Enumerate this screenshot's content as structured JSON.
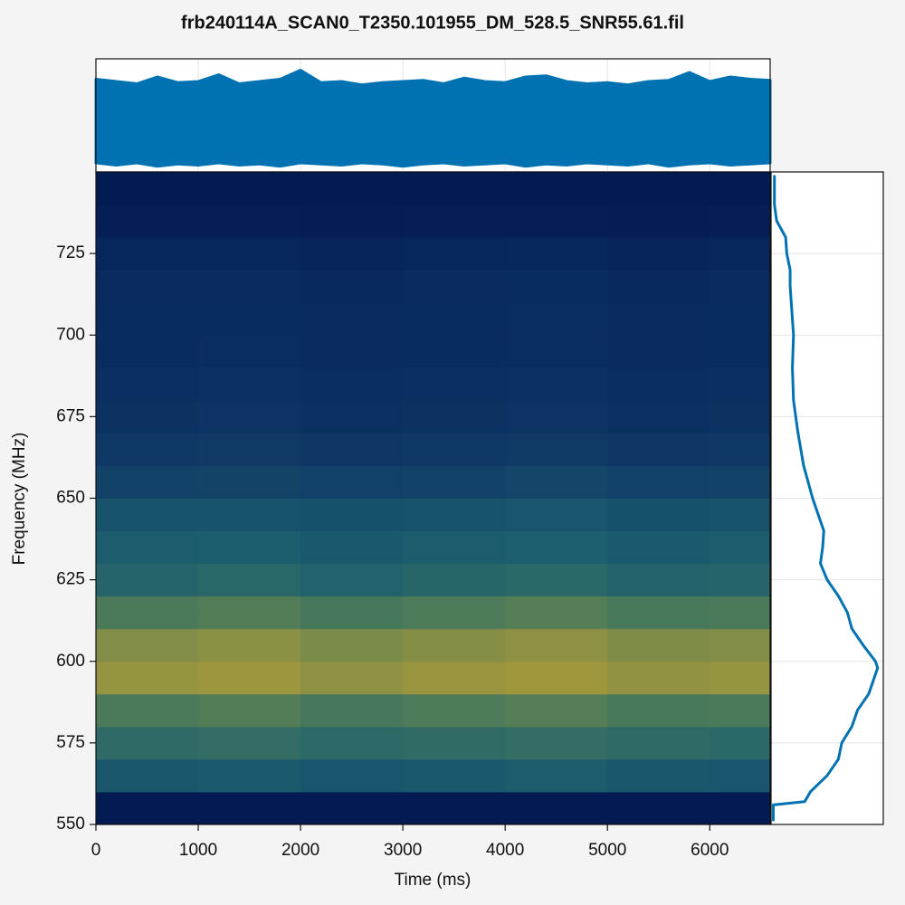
{
  "chart_data": [
    {
      "type": "heatmap",
      "title": "frb240114A_SCAN0_T2350.101955_DM_528.5_SNR55.61.fil",
      "x_label": "Time (ms)",
      "y_label": "Frequency (MHz)",
      "xlim": [
        0,
        6590
      ],
      "ylim": [
        550,
        750
      ],
      "xticks": [
        0,
        1000,
        2000,
        3000,
        4000,
        5000,
        6000
      ],
      "yticks": [
        550,
        575,
        600,
        625,
        650,
        675,
        700,
        725
      ],
      "x_bins": [
        0,
        1000,
        2000,
        3000,
        4000,
        5000,
        6000,
        6590
      ],
      "y_bins": [
        550,
        560,
        570,
        580,
        590,
        600,
        610,
        620,
        630,
        640,
        650,
        660,
        670,
        680,
        690,
        700,
        710,
        720,
        730,
        740,
        750
      ],
      "clim": [
        0,
        1
      ],
      "colormap": [
        "#021850",
        "#0d3565",
        "#1d5f6e",
        "#4a7a5a",
        "#a89a3a"
      ],
      "values": [
        [
          0.02,
          0.02,
          0.02,
          0.02,
          0.02,
          0.02,
          0.02
        ],
        [
          0.45,
          0.47,
          0.44,
          0.46,
          0.48,
          0.45,
          0.44
        ],
        [
          0.6,
          0.62,
          0.59,
          0.61,
          0.63,
          0.6,
          0.58
        ],
        [
          0.75,
          0.77,
          0.73,
          0.76,
          0.78,
          0.74,
          0.75
        ],
        [
          0.95,
          0.97,
          0.93,
          0.96,
          0.98,
          0.94,
          0.95
        ],
        [
          0.9,
          0.92,
          0.88,
          0.91,
          0.93,
          0.89,
          0.9
        ],
        [
          0.75,
          0.77,
          0.73,
          0.76,
          0.78,
          0.74,
          0.75
        ],
        [
          0.55,
          0.57,
          0.53,
          0.56,
          0.58,
          0.54,
          0.55
        ],
        [
          0.48,
          0.49,
          0.46,
          0.48,
          0.5,
          0.47,
          0.48
        ],
        [
          0.42,
          0.43,
          0.41,
          0.42,
          0.44,
          0.41,
          0.42
        ],
        [
          0.33,
          0.34,
          0.32,
          0.33,
          0.35,
          0.32,
          0.33
        ],
        [
          0.27,
          0.28,
          0.26,
          0.27,
          0.28,
          0.26,
          0.27
        ],
        [
          0.22,
          0.23,
          0.21,
          0.22,
          0.23,
          0.21,
          0.22
        ],
        [
          0.2,
          0.21,
          0.19,
          0.2,
          0.21,
          0.19,
          0.2
        ],
        [
          0.17,
          0.18,
          0.16,
          0.17,
          0.18,
          0.16,
          0.17
        ],
        [
          0.17,
          0.17,
          0.16,
          0.17,
          0.18,
          0.16,
          0.17
        ],
        [
          0.16,
          0.16,
          0.15,
          0.16,
          0.17,
          0.15,
          0.16
        ],
        [
          0.12,
          0.12,
          0.11,
          0.12,
          0.13,
          0.11,
          0.12
        ],
        [
          0.06,
          0.06,
          0.05,
          0.06,
          0.06,
          0.05,
          0.06
        ],
        [
          0.03,
          0.03,
          0.03,
          0.03,
          0.03,
          0.03,
          0.03
        ]
      ]
    },
    {
      "type": "band",
      "color": "#0072b2",
      "xlim": [
        0,
        6590
      ],
      "ylim": [
        0,
        1
      ],
      "grid": true,
      "x": [
        0,
        200,
        400,
        600,
        800,
        1000,
        1200,
        1400,
        1600,
        1800,
        2000,
        2200,
        2400,
        2600,
        2800,
        3000,
        3200,
        3400,
        3600,
        3800,
        4000,
        4200,
        4400,
        4600,
        4800,
        5000,
        5200,
        5400,
        5600,
        5800,
        6000,
        6200,
        6400,
        6590
      ],
      "upper": [
        0.82,
        0.8,
        0.78,
        0.84,
        0.79,
        0.8,
        0.86,
        0.78,
        0.8,
        0.82,
        0.9,
        0.79,
        0.8,
        0.77,
        0.79,
        0.8,
        0.81,
        0.78,
        0.83,
        0.8,
        0.79,
        0.84,
        0.85,
        0.8,
        0.78,
        0.79,
        0.77,
        0.8,
        0.81,
        0.88,
        0.8,
        0.84,
        0.82,
        0.81
      ],
      "lower": [
        0.08,
        0.06,
        0.08,
        0.05,
        0.07,
        0.06,
        0.08,
        0.06,
        0.07,
        0.05,
        0.08,
        0.07,
        0.06,
        0.08,
        0.07,
        0.05,
        0.07,
        0.08,
        0.06,
        0.07,
        0.08,
        0.05,
        0.07,
        0.06,
        0.08,
        0.07,
        0.06,
        0.08,
        0.05,
        0.07,
        0.08,
        0.06,
        0.07,
        0.08
      ]
    },
    {
      "type": "profile",
      "color": "#0072b2",
      "xlim": [
        0,
        1
      ],
      "ylim": [
        550,
        750
      ],
      "grid": true,
      "y": [
        551,
        556,
        557,
        560,
        565,
        570,
        575,
        580,
        585,
        590,
        595,
        598,
        600,
        605,
        610,
        615,
        620,
        625,
        630,
        635,
        640,
        645,
        650,
        660,
        670,
        680,
        690,
        700,
        710,
        715,
        720,
        725,
        730,
        735,
        740,
        749
      ],
      "values": [
        0.02,
        0.02,
        0.3,
        0.35,
        0.5,
        0.6,
        0.63,
        0.72,
        0.77,
        0.87,
        0.92,
        0.95,
        0.93,
        0.82,
        0.72,
        0.68,
        0.6,
        0.5,
        0.44,
        0.46,
        0.47,
        0.42,
        0.37,
        0.29,
        0.24,
        0.2,
        0.19,
        0.2,
        0.18,
        0.17,
        0.17,
        0.14,
        0.13,
        0.05,
        0.03,
        0.03
      ]
    }
  ]
}
